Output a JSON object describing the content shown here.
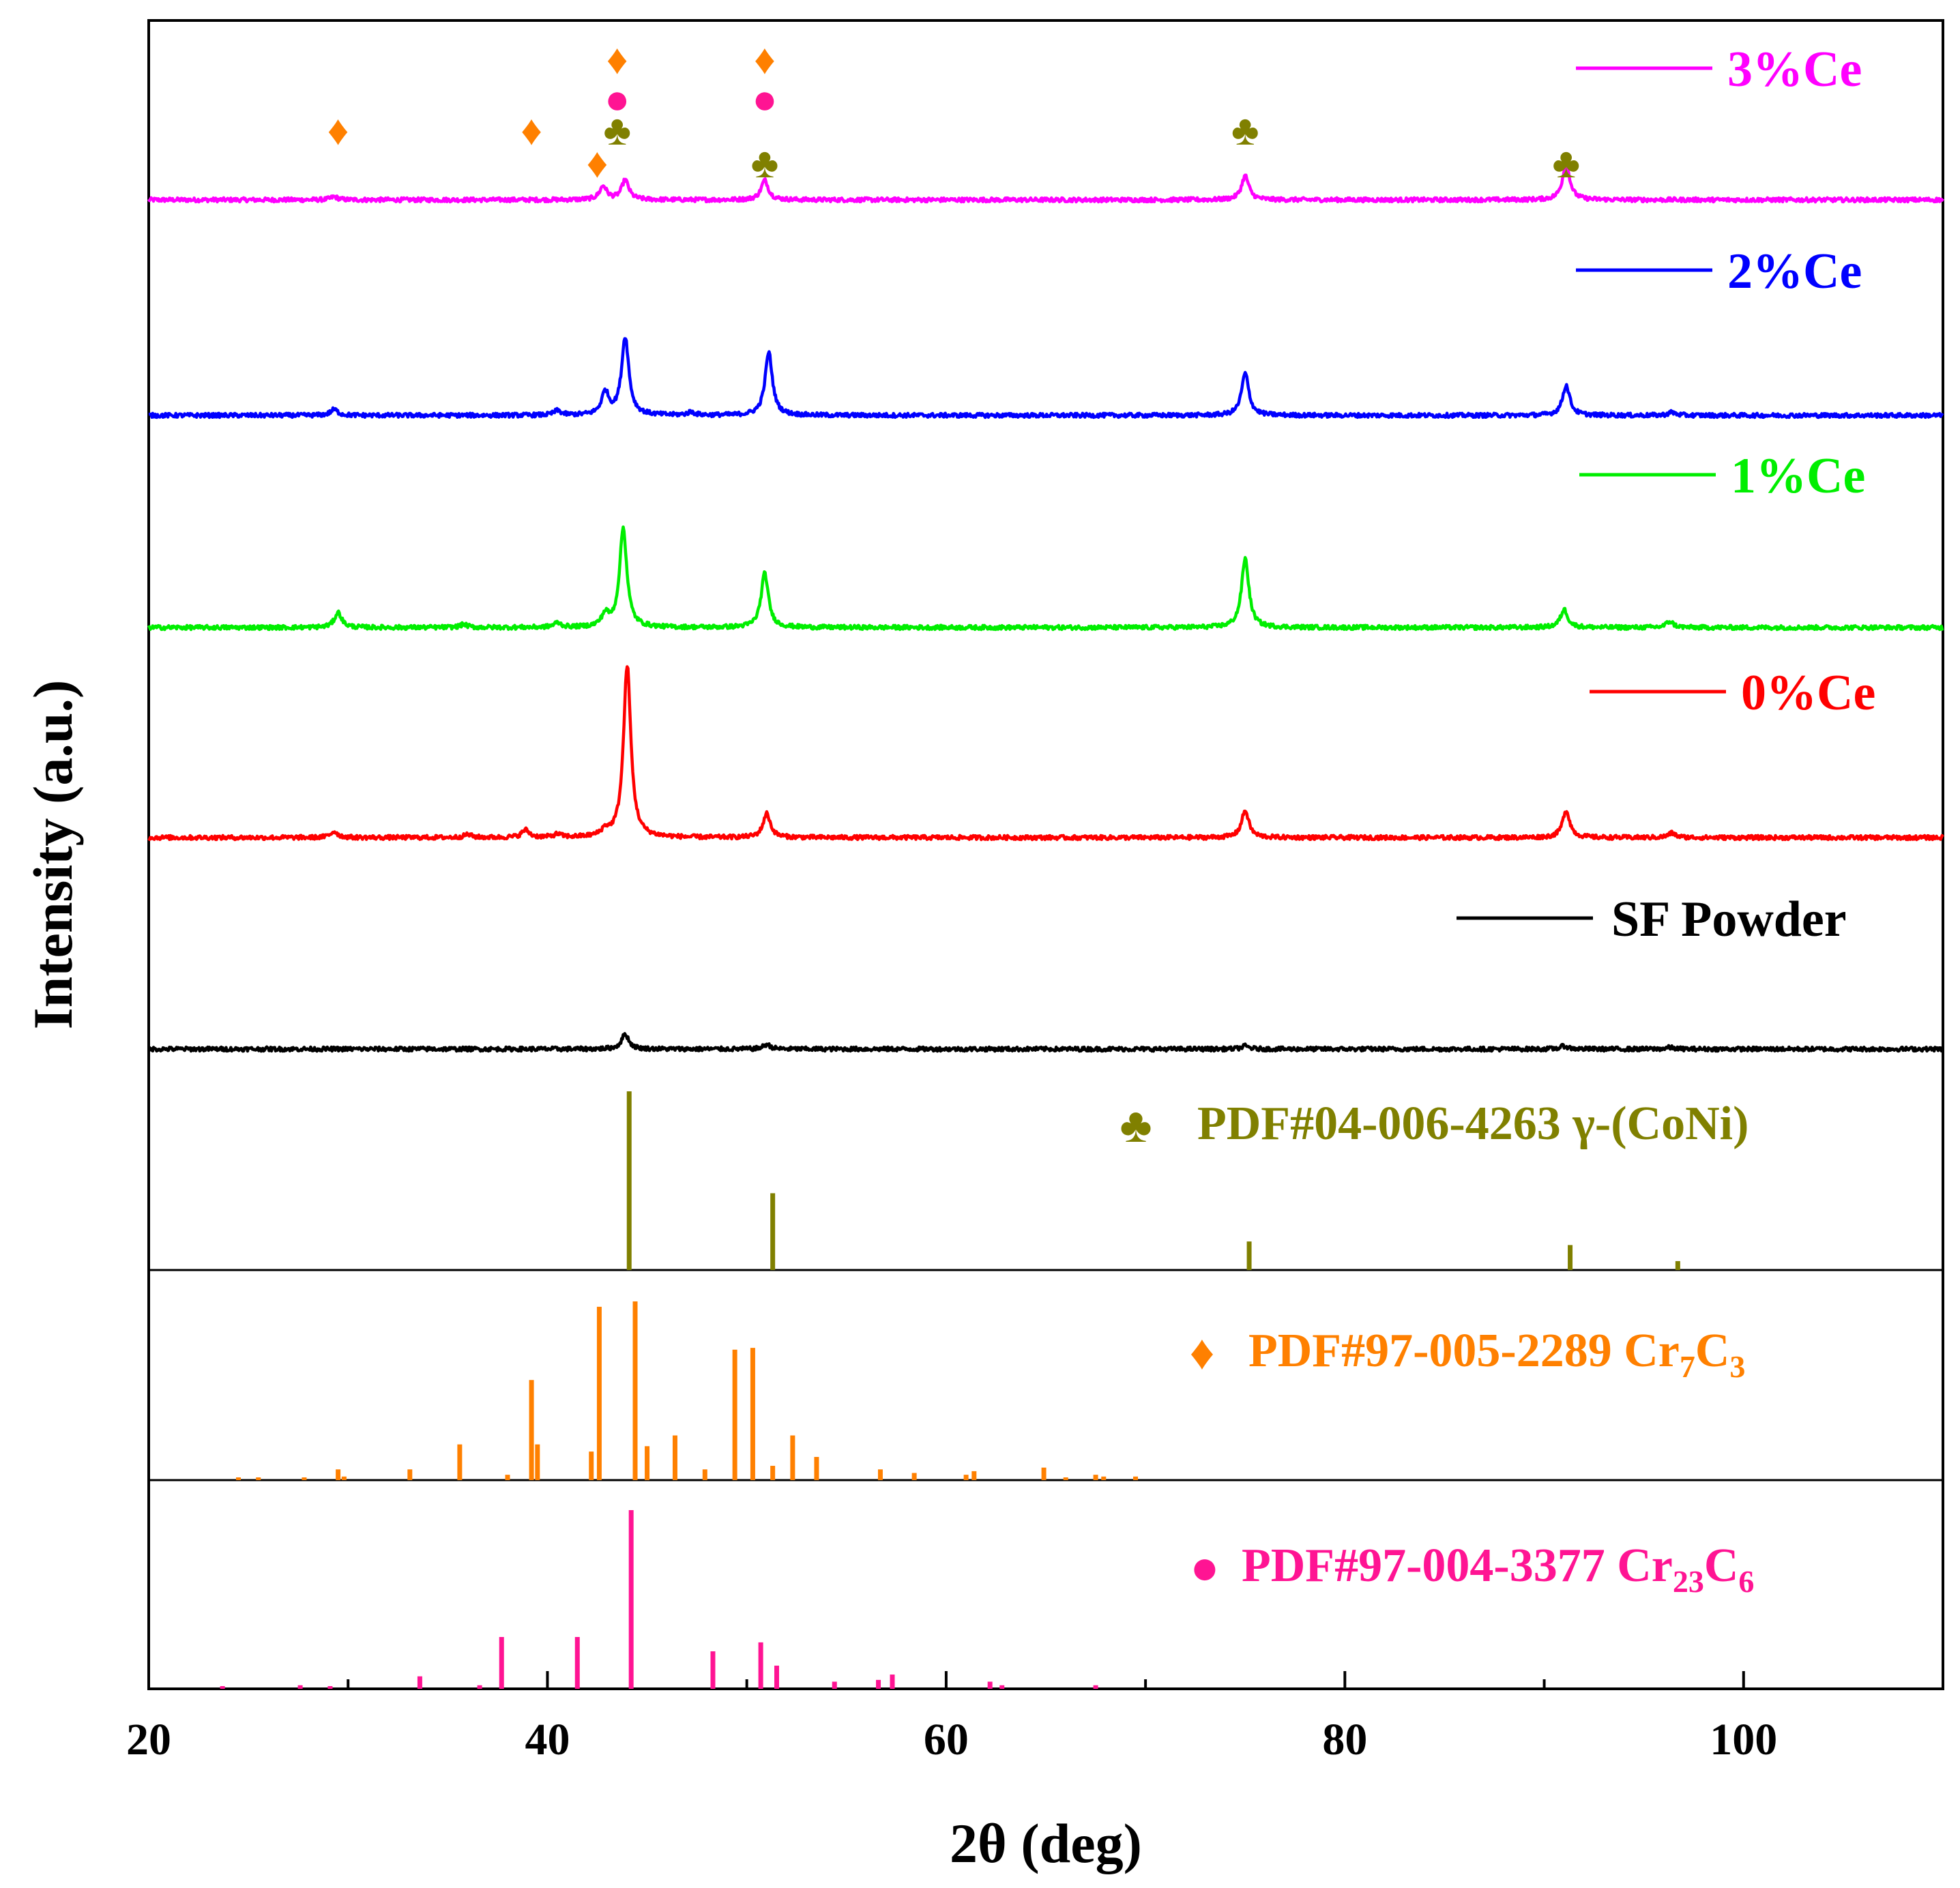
{
  "chart_data": {
    "type": "line",
    "title": "",
    "xlabel": "2θ (deg)",
    "ylabel": "Intensity (a.u.)",
    "xlim": [
      20,
      110
    ],
    "x_ticks": [
      20,
      40,
      60,
      80,
      100
    ],
    "x_tick_labels": [
      "20",
      "40",
      "60",
      "80",
      "100"
    ],
    "grid": false,
    "series": [
      {
        "name": "3%Ce",
        "color": "#ff00ff",
        "peaks": [
          [
            29.3,
            0.02
          ],
          [
            42.8,
            0.09
          ],
          [
            43.9,
            0.13
          ],
          [
            50.9,
            0.13
          ],
          [
            75.0,
            0.16
          ],
          [
            91.1,
            0.24
          ]
        ]
      },
      {
        "name": "2%Ce",
        "color": "#0000ff",
        "peaks": [
          [
            29.3,
            0.04
          ],
          [
            40.5,
            0.03
          ],
          [
            42.9,
            0.15
          ],
          [
            43.9,
            0.52
          ],
          [
            47.2,
            0.02
          ],
          [
            51.1,
            0.42
          ],
          [
            75.0,
            0.28
          ],
          [
            91.1,
            0.2
          ],
          [
            96.4,
            0.02
          ]
        ]
      },
      {
        "name": "1%Ce",
        "color": "#00ee00",
        "peaks": [
          [
            29.5,
            0.1
          ],
          [
            35.8,
            0.02
          ],
          [
            40.5,
            0.03
          ],
          [
            42.9,
            0.08
          ],
          [
            43.8,
            0.66
          ],
          [
            50.9,
            0.36
          ],
          [
            75.0,
            0.46
          ],
          [
            91.0,
            0.12
          ],
          [
            96.3,
            0.04
          ]
        ]
      },
      {
        "name": "0%Ce",
        "color": "#ff0000",
        "peaks": [
          [
            29.3,
            0.04
          ],
          [
            36.0,
            0.02
          ],
          [
            38.9,
            0.05
          ],
          [
            40.5,
            0.02
          ],
          [
            42.9,
            0.04
          ],
          [
            44.0,
            1.15
          ],
          [
            51.0,
            0.16
          ],
          [
            75.0,
            0.18
          ],
          [
            91.1,
            0.18
          ],
          [
            96.4,
            0.03
          ]
        ]
      },
      {
        "name": "SF Powder",
        "color": "#000000",
        "peaks": [
          [
            43.9,
            0.1
          ],
          [
            51.0,
            0.03
          ],
          [
            75.0,
            0.02
          ],
          [
            91.0,
            0.02
          ],
          [
            96.3,
            0.01
          ]
        ]
      }
    ],
    "references": [
      {
        "id": "coni",
        "legend_prefix": "PDF#04-006-4263 γ-(CoNi)",
        "symbol": "♣",
        "color": "#808000",
        "lines": [
          [
            44.1,
            100
          ],
          [
            51.3,
            43
          ],
          [
            75.2,
            16
          ],
          [
            91.3,
            14
          ],
          [
            96.7,
            5
          ]
        ]
      },
      {
        "id": "cr7c3",
        "legend_prefix": "PDF#97-005-2289  Cr",
        "legend_sub1": "7",
        "legend_mid": "C",
        "legend_sub2": "3",
        "symbol": "♦",
        "color": "#ff8000",
        "lines": [
          [
            24.5,
            1
          ],
          [
            25.5,
            1
          ],
          [
            27.8,
            1
          ],
          [
            29.5,
            6
          ],
          [
            29.8,
            2
          ],
          [
            33.1,
            6
          ],
          [
            35.6,
            20
          ],
          [
            38.0,
            3
          ],
          [
            39.2,
            56
          ],
          [
            39.5,
            20
          ],
          [
            42.2,
            16
          ],
          [
            42.6,
            97
          ],
          [
            44.4,
            100
          ],
          [
            45.0,
            19
          ],
          [
            46.4,
            25
          ],
          [
            47.9,
            6
          ],
          [
            49.4,
            73
          ],
          [
            50.3,
            74
          ],
          [
            51.3,
            8
          ],
          [
            52.3,
            25
          ],
          [
            53.5,
            13
          ],
          [
            56.7,
            6
          ],
          [
            58.4,
            4
          ],
          [
            61.0,
            3
          ],
          [
            61.4,
            5
          ],
          [
            64.9,
            7
          ],
          [
            66.0,
            1
          ],
          [
            67.5,
            3
          ],
          [
            67.9,
            2
          ],
          [
            69.5,
            2
          ]
        ]
      },
      {
        "id": "cr23c6",
        "legend_prefix": "PDF#97-004-3377  Cr",
        "legend_sub1": "23",
        "legend_mid": "C",
        "legend_sub2": "6",
        "symbol": "●",
        "color": "#ff1493",
        "lines": [
          [
            23.7,
            1
          ],
          [
            27.6,
            2
          ],
          [
            29.1,
            1
          ],
          [
            33.6,
            7
          ],
          [
            36.6,
            2
          ],
          [
            37.7,
            29
          ],
          [
            41.5,
            29
          ],
          [
            44.2,
            100
          ],
          [
            48.3,
            21
          ],
          [
            50.7,
            26
          ],
          [
            51.5,
            13
          ],
          [
            54.4,
            4
          ],
          [
            56.6,
            5
          ],
          [
            57.3,
            8
          ],
          [
            62.2,
            4
          ],
          [
            62.8,
            2
          ],
          [
            67.5,
            2
          ]
        ]
      }
    ],
    "annotations": [
      {
        "symbol": "♦",
        "color": "#ff8000",
        "x": 29.5,
        "tier": "mid"
      },
      {
        "symbol": "♦",
        "color": "#ff8000",
        "x": 39.2,
        "tier": "mid"
      },
      {
        "symbol": "♦",
        "color": "#ff8000",
        "x": 42.5,
        "tier": "low"
      },
      {
        "symbol": "♦",
        "color": "#ff8000",
        "x": 43.5,
        "tier": "top"
      },
      {
        "symbol": "●",
        "color": "#ff1493",
        "x": 43.5,
        "tier": "second"
      },
      {
        "symbol": "♣",
        "color": "#808000",
        "x": 43.5,
        "tier": "mid"
      },
      {
        "symbol": "♦",
        "color": "#ff8000",
        "x": 50.9,
        "tier": "top"
      },
      {
        "symbol": "●",
        "color": "#ff1493",
        "x": 50.9,
        "tier": "second"
      },
      {
        "symbol": "♣",
        "color": "#808000",
        "x": 50.9,
        "tier": "low"
      },
      {
        "symbol": "♣",
        "color": "#808000",
        "x": 75.0,
        "tier": "mid"
      },
      {
        "symbol": "♣",
        "color": "#808000",
        "x": 91.1,
        "tier": "low"
      }
    ]
  }
}
